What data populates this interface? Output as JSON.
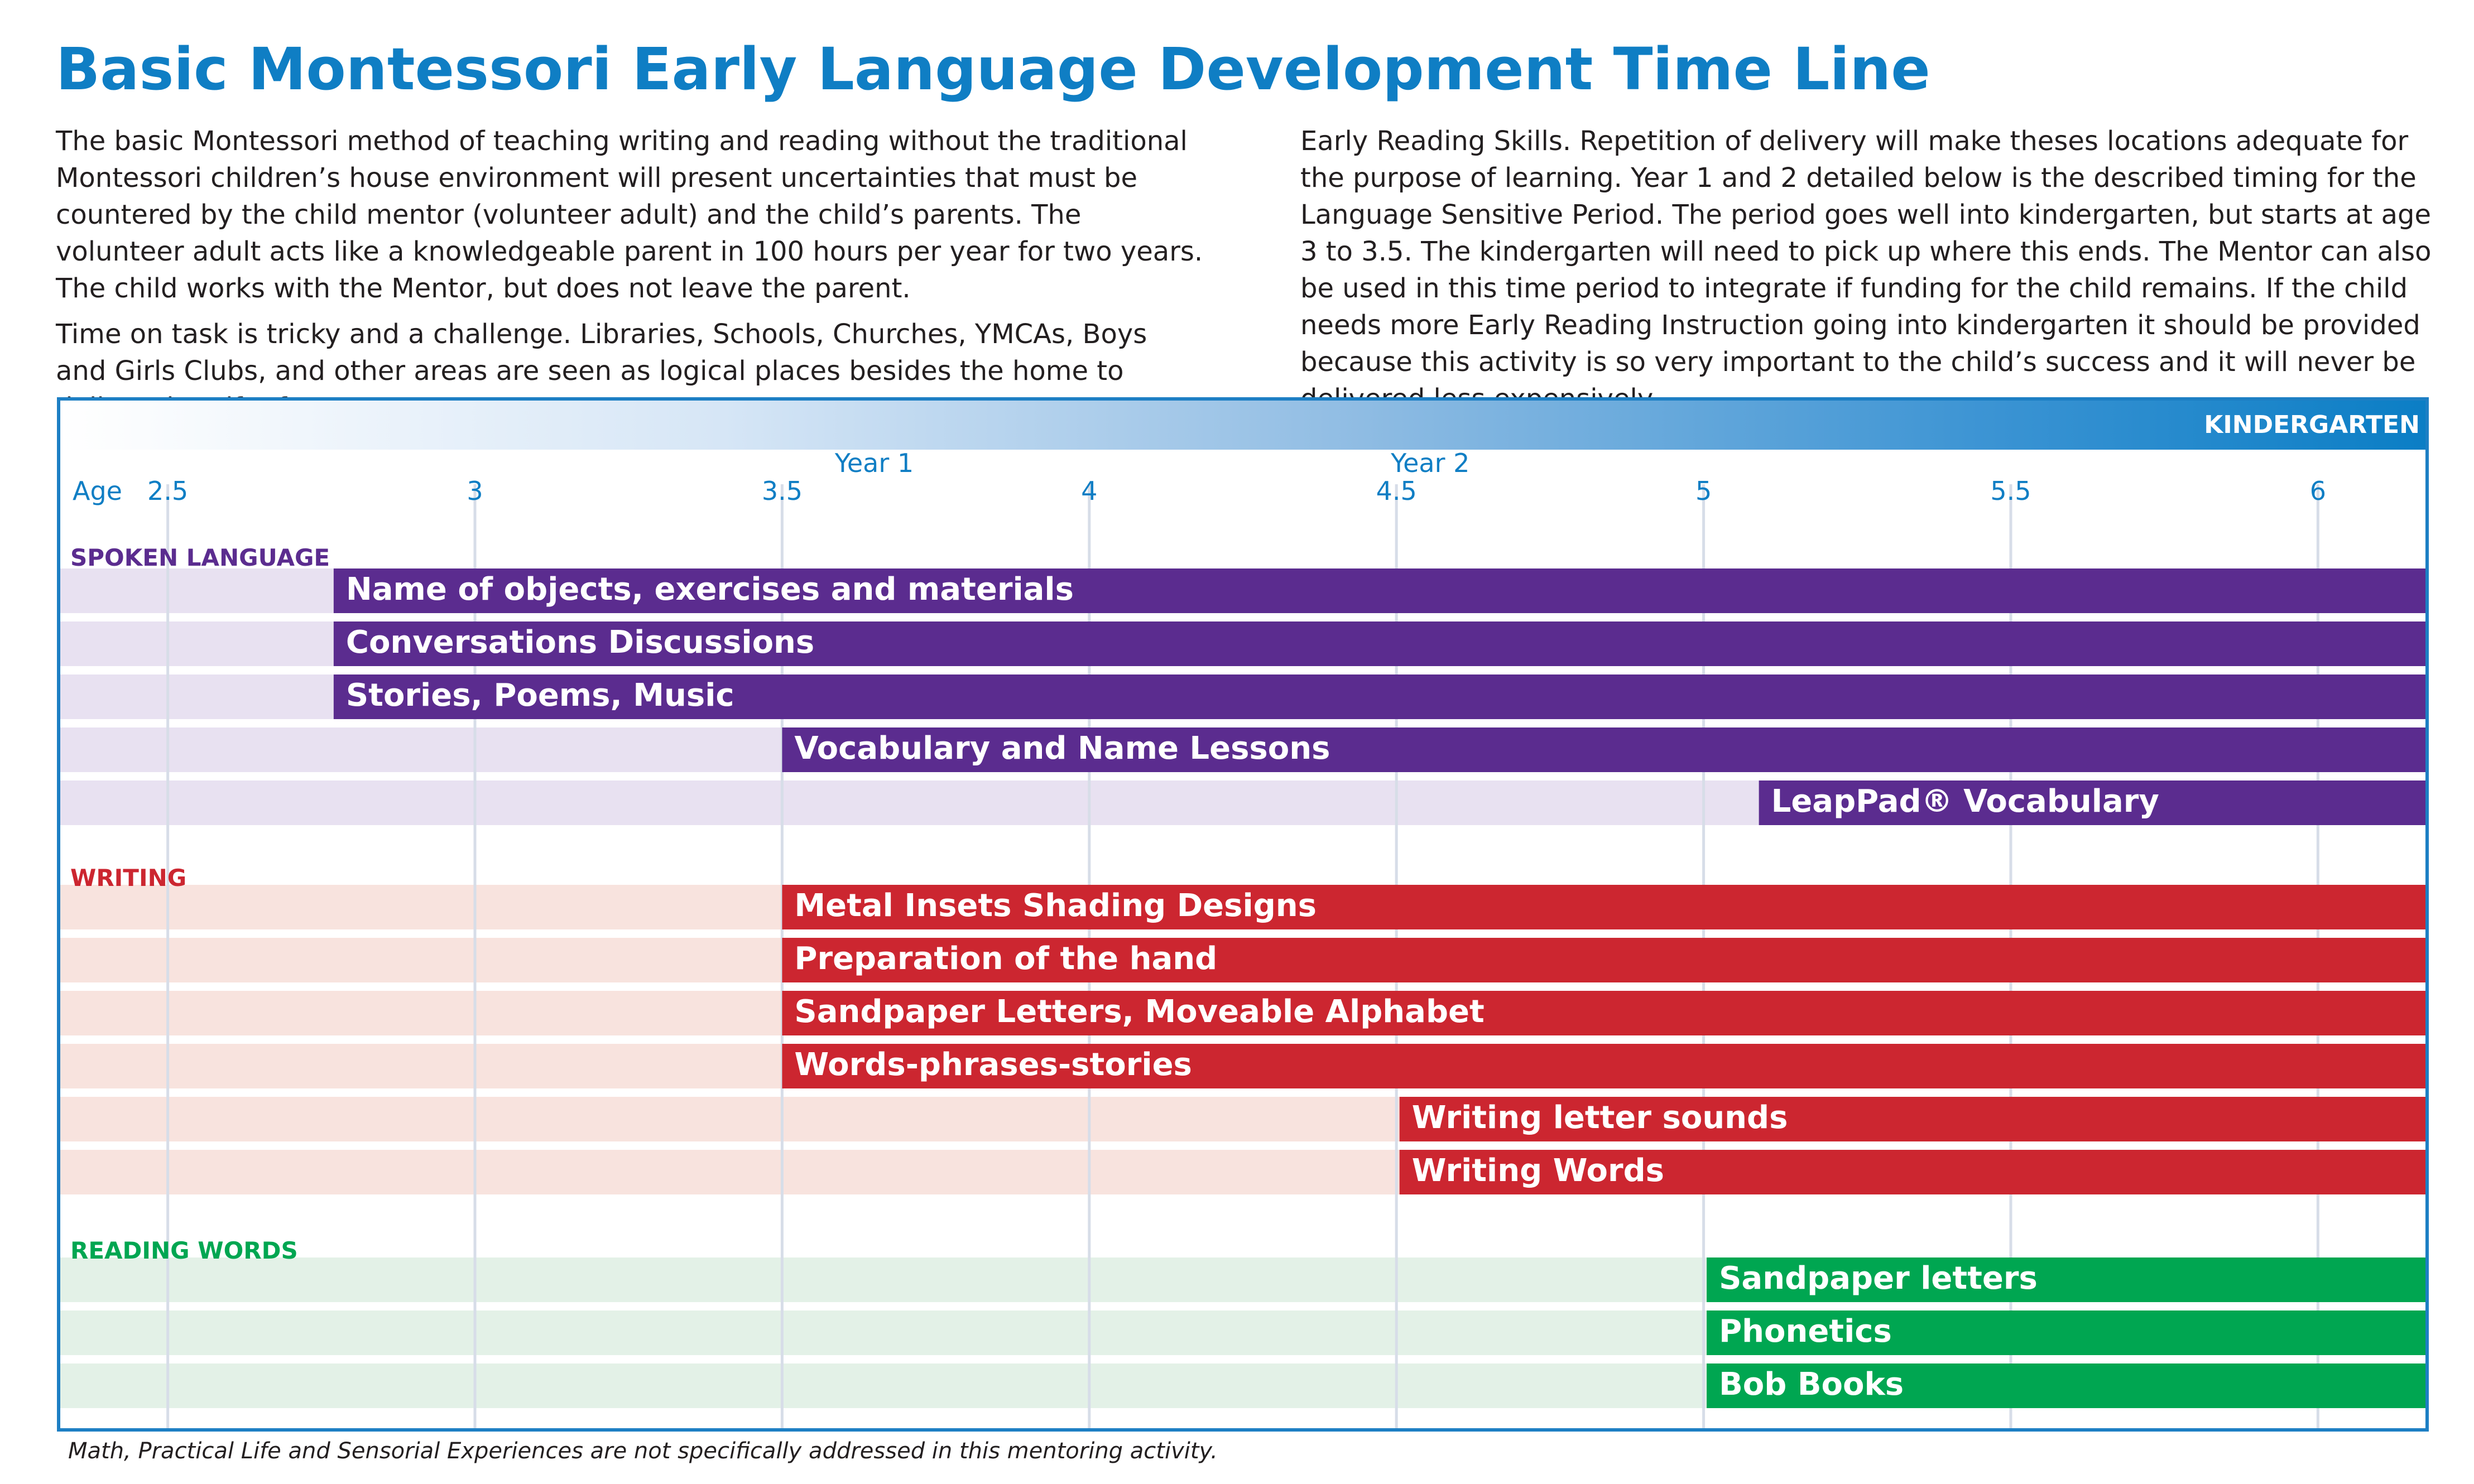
{
  "page": {
    "title": "Basic Montessori Early Language Development Time Line",
    "intro_left": [
      "The basic Montessori method of teaching writing and reading without the traditional Montessori children’s house environment will present uncertainties that must be countered by the child mentor (volunteer adult) and the child’s parents. The volunteer adult acts like a knowledgeable parent in 100 hours per year for two years. The child works with the Mentor, but does not leave the parent.",
      "Time on task is tricky and a challenge. Libraries, Schools, Churches, YMCAs, Boys and Girls Clubs, and other areas are seen as logical places besides the home to deliver the gift of"
    ],
    "intro_right": "Early Reading Skills. Repetition of delivery will make theses locations adequate for the purpose of learning. Year 1 and 2 detailed below is the described timing for the Language Sensitive Period. The period goes well into kindergarten, but starts at age 3 to 3.5. The kindergarten will need to pick up where this ends. The Mentor can also be used in this time period to integrate if funding for the child remains. If the child needs more Early Reading Instruction going into kindergarten it should be provided because this activity is so very important to the child’s success and it will never be delivered less expensively.",
    "kindergarten_label": "KINDERGARTEN",
    "footnote": "Math, Practical Life and Sensorial Experiences are not specifically addressed in this mentoring activity."
  },
  "chart_data": {
    "type": "timeline",
    "axis_label": "Age",
    "ticks": [
      2.5,
      3,
      3.5,
      4,
      4.5,
      5,
      5.5,
      6
    ],
    "tick_labels": [
      "2.5",
      "3",
      "3.5",
      "4",
      "4.5",
      "5",
      "5.5",
      "6"
    ],
    "xlim": [
      2.325,
      6.175
    ],
    "period_markers": [
      {
        "label": "Year 1",
        "age": 3.65
      },
      {
        "label": "Year 2",
        "age": 4.555
      }
    ],
    "colors": {
      "spoken": "#5b2c8f",
      "spoken_bg": "#e8e1f1",
      "writing": "#cc2630",
      "writing_bg": "#f8e3de",
      "reading": "#00a651",
      "reading_bg": "#e3f1e7",
      "axis_text": "#0f7ec4",
      "grid": "#d7dde8"
    },
    "sections": [
      {
        "name": "SPOKEN LANGUAGE",
        "key": "spoken",
        "activities": [
          {
            "label": "Name of objects, exercises and materials",
            "start": 2.77,
            "end": 6.175
          },
          {
            "label": "Conversations Discussions",
            "start": 2.77,
            "end": 6.175
          },
          {
            "label": "Stories, Poems, Music",
            "start": 2.77,
            "end": 6.175
          },
          {
            "label": "Vocabulary and Name Lessons",
            "start": 3.5,
            "end": 6.175
          },
          {
            "label": "LeapPad® Vocabulary",
            "start": 5.09,
            "end": 6.175
          }
        ]
      },
      {
        "name": "WRITING",
        "key": "writing",
        "activities": [
          {
            "label": "Metal Insets Shading Designs",
            "start": 3.5,
            "end": 6.175
          },
          {
            "label": "Preparation of the hand",
            "start": 3.5,
            "end": 6.175
          },
          {
            "label": "Sandpaper Letters, Moveable Alphabet",
            "start": 3.5,
            "end": 6.175
          },
          {
            "label": "Words-phrases-stories",
            "start": 3.5,
            "end": 6.175
          },
          {
            "label": "Writing letter sounds",
            "start": 4.505,
            "end": 6.175
          },
          {
            "label": "Writing Words",
            "start": 4.505,
            "end": 6.175
          }
        ]
      },
      {
        "name": "READING WORDS",
        "key": "reading",
        "activities": [
          {
            "label": "Sandpaper letters",
            "start": 5.005,
            "end": 6.175
          },
          {
            "label": "Phonetics",
            "start": 5.005,
            "end": 6.175
          },
          {
            "label": "Bob Books",
            "start": 5.005,
            "end": 6.175
          }
        ]
      }
    ]
  }
}
